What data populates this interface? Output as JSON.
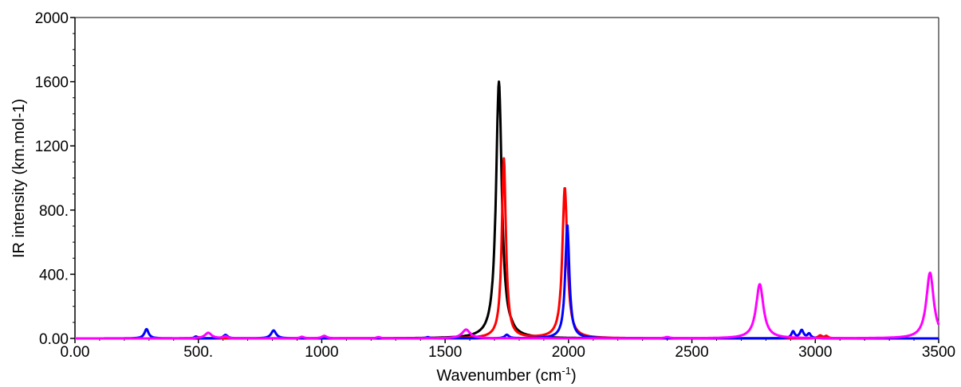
{
  "chart_data": {
    "type": "line",
    "title": "",
    "xlabel": "Wavenumber (cm-1)",
    "xlabel_main": "Wavenumber (cm",
    "xlabel_sup": "-1",
    "xlabel_tail": ")",
    "ylabel": "IR intensity (km.mol-1)",
    "xlim": [
      0,
      3500
    ],
    "ylim": [
      0,
      2000
    ],
    "x_ticks": [
      0,
      500,
      1000,
      1500,
      2000,
      2500,
      3000,
      3500
    ],
    "x_tick_labels": [
      "0.00",
      "500.",
      "1000",
      "1500",
      "2000",
      "2500",
      "3000",
      "3500"
    ],
    "y_ticks": [
      0,
      400,
      800,
      1200,
      1600,
      2000
    ],
    "y_tick_labels": [
      "0.00",
      "400.",
      "800.",
      "1200",
      "1600",
      "2000"
    ],
    "grid": false,
    "series": [
      {
        "color": "#000000",
        "peaks": [
          [
            1718,
            1600,
            14
          ],
          [
            1770,
            10,
            10
          ],
          [
            3010,
            6,
            12
          ]
        ]
      },
      {
        "color": "#ff0000",
        "peaks": [
          [
            1738,
            1120,
            10
          ],
          [
            1985,
            940,
            12
          ],
          [
            3020,
            18,
            10
          ],
          [
            3045,
            14,
            8
          ],
          [
            500,
            8,
            10
          ]
        ]
      },
      {
        "color": "#0000ff",
        "peaks": [
          [
            290,
            58,
            10
          ],
          [
            490,
            12,
            8
          ],
          [
            610,
            22,
            10
          ],
          [
            805,
            50,
            12
          ],
          [
            1430,
            8,
            10
          ],
          [
            1750,
            22,
            10
          ],
          [
            1995,
            710,
            10
          ],
          [
            2910,
            42,
            8
          ],
          [
            2945,
            50,
            9
          ],
          [
            2975,
            28,
            8
          ]
        ]
      },
      {
        "color": "#ff00ff",
        "peaks": [
          [
            540,
            35,
            16
          ],
          [
            610,
            12,
            10
          ],
          [
            920,
            10,
            10
          ],
          [
            1010,
            16,
            12
          ],
          [
            1230,
            8,
            10
          ],
          [
            1585,
            55,
            20
          ],
          [
            2400,
            8,
            12
          ],
          [
            2775,
            338,
            18
          ],
          [
            3465,
            410,
            18
          ]
        ]
      }
    ]
  }
}
